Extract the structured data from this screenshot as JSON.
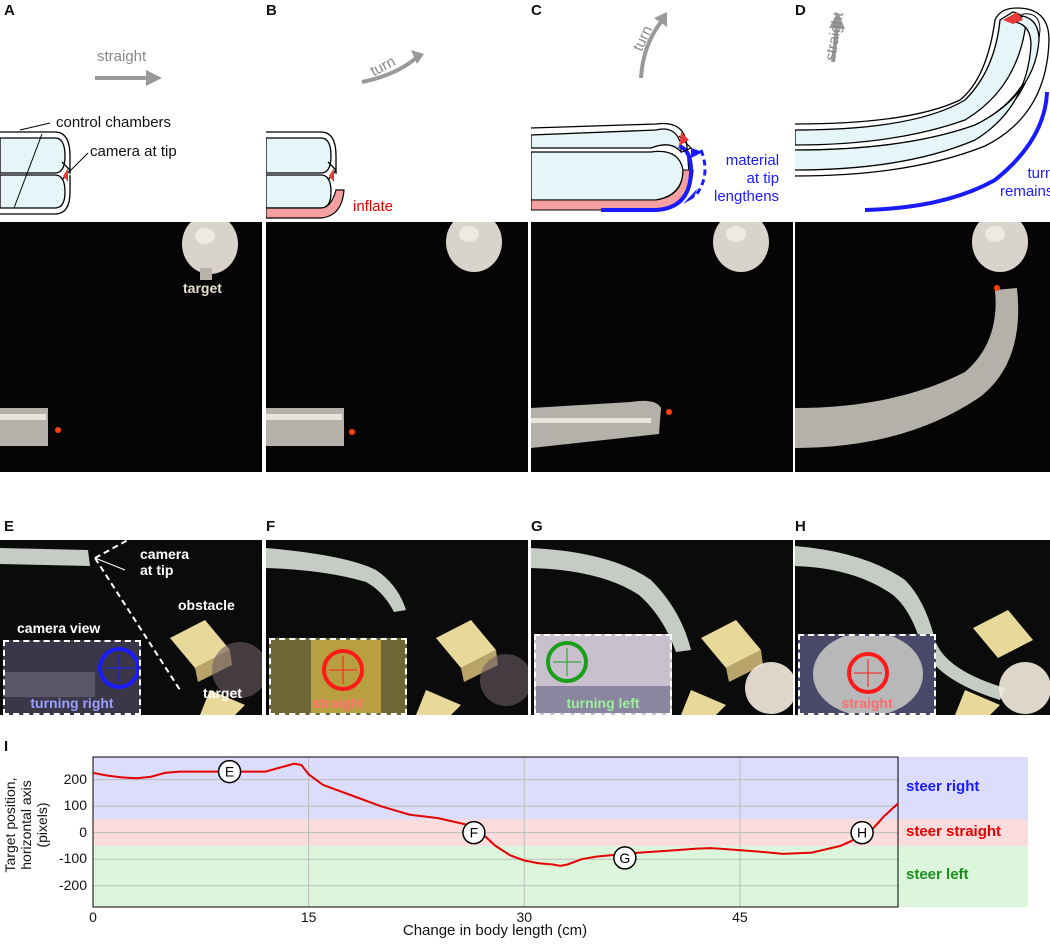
{
  "panels": {
    "A": {
      "letter": "A",
      "direction": "straight",
      "labels": [
        "control chambers",
        "camera at tip"
      ],
      "photo_label": "target"
    },
    "B": {
      "letter": "B",
      "direction": "turn",
      "annotation": "inflate"
    },
    "C": {
      "letter": "C",
      "direction": "turn",
      "annotation": "material\nat tip\nlengthens"
    },
    "D": {
      "letter": "D",
      "direction": "straight",
      "annotation": "turn\nremains"
    },
    "E": {
      "letter": "E",
      "labels": [
        "camera\nat tip",
        "obstacle",
        "camera view",
        "target"
      ],
      "inset_text": "turning right",
      "ring_color": "#1a1aff",
      "inset_text_color": "#9e9eff"
    },
    "F": {
      "letter": "F",
      "inset_text": "straight",
      "ring_color": "#ff1a1a",
      "inset_text_color": "#ff7070"
    },
    "G": {
      "letter": "G",
      "inset_text": "turning left",
      "ring_color": "#1b9e1b",
      "inset_text_color": "#9ef09e"
    },
    "H": {
      "letter": "H",
      "inset_text": "straight",
      "ring_color": "#ff1a1a",
      "inset_text_color": "#ff6a6a"
    },
    "I": {
      "letter": "I"
    }
  },
  "colors": {
    "blue": "#1a1aff",
    "red": "#e60000",
    "pink": "#f4a0a0",
    "chamber": "#e6f6f8",
    "green": "#1b8f1b"
  },
  "chart_data": {
    "type": "line",
    "xlabel": "Change in body length (cm)",
    "ylabel": "Target position,\nhorizontal axis\n(pixels)",
    "xlim": [
      0,
      56
    ],
    "ylim": [
      -280,
      285
    ],
    "xticks": [
      0,
      15,
      30,
      45
    ],
    "yticks": [
      200,
      100,
      0,
      -100,
      -200
    ],
    "grid": true,
    "zones": [
      {
        "label": "steer right",
        "from": 50,
        "to": 285,
        "color": "#dcdcfb",
        "text_color": "#1a1aff"
      },
      {
        "label": "steer straight",
        "from": -50,
        "to": 50,
        "color": "#fbdcdc",
        "text_color": "#e60000"
      },
      {
        "label": "steer left",
        "from": -280,
        "to": -50,
        "color": "#dcf6dc",
        "text_color": "#1b8f1b"
      }
    ],
    "series": [
      {
        "color": "#e60000",
        "x": [
          0,
          1,
          2,
          3,
          4,
          5,
          6,
          8,
          10,
          12,
          13,
          14,
          14.5,
          15,
          16,
          18,
          20,
          22,
          24,
          26,
          27,
          28,
          29,
          30,
          31,
          32,
          32.5,
          33,
          34,
          35,
          36,
          37,
          38,
          40,
          42,
          43,
          44,
          46,
          48,
          50,
          52,
          53,
          54,
          55,
          56
        ],
        "y": [
          225,
          215,
          208,
          205,
          210,
          225,
          230,
          230,
          230,
          230,
          245,
          260,
          255,
          220,
          180,
          140,
          100,
          68,
          55,
          30,
          0,
          -50,
          -85,
          -105,
          -115,
          -120,
          -125,
          -120,
          -100,
          -90,
          -85,
          -80,
          -75,
          -68,
          -60,
          -58,
          -62,
          -70,
          -80,
          -75,
          -50,
          -25,
          0,
          60,
          110
        ]
      }
    ],
    "markers": [
      {
        "label": "E",
        "x": 9.5,
        "y": 230
      },
      {
        "label": "F",
        "x": 26.5,
        "y": 0
      },
      {
        "label": "G",
        "x": 37,
        "y": -95
      },
      {
        "label": "H",
        "x": 53.5,
        "y": 0
      }
    ]
  }
}
